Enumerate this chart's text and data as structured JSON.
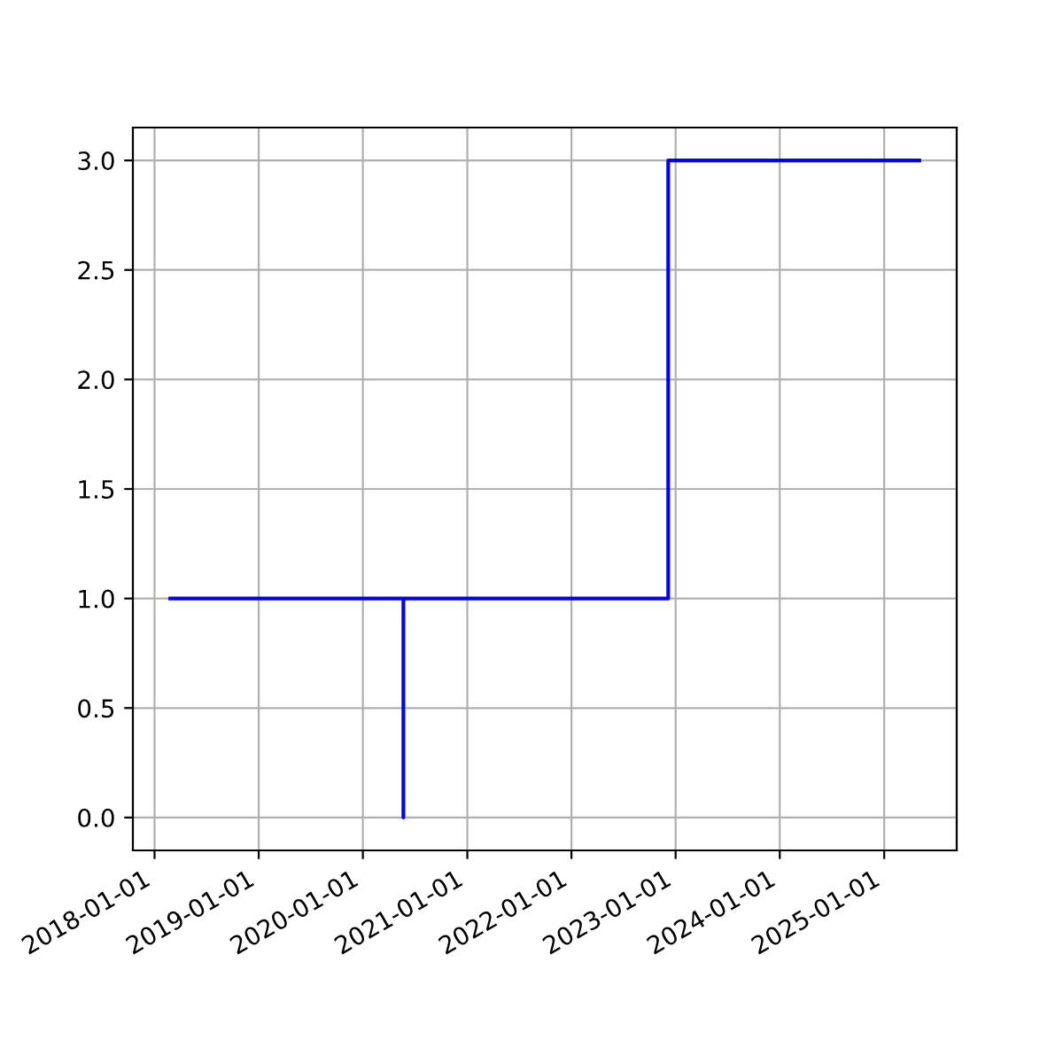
{
  "chart_data": {
    "type": "line",
    "x": [
      "2018-02-25",
      "2020-05-22",
      "2020-05-22",
      "2020-05-22",
      "2022-12-06",
      "2022-12-06",
      "2025-05-04"
    ],
    "series": [
      {
        "color": "#0000ff",
        "values": [
          1,
          1,
          0,
          1,
          1,
          3,
          3
        ]
      }
    ],
    "xlim": [
      "2017-10-17",
      "2025-09-12"
    ],
    "xticks": [
      {
        "value": "2018-01-01",
        "label": "2018-01-01"
      },
      {
        "value": "2019-01-01",
        "label": "2019-01-01"
      },
      {
        "value": "2020-01-01",
        "label": "2020-01-01"
      },
      {
        "value": "2021-01-01",
        "label": "2021-01-01"
      },
      {
        "value": "2022-01-01",
        "label": "2022-01-01"
      },
      {
        "value": "2023-01-01",
        "label": "2023-01-01"
      },
      {
        "value": "2024-01-01",
        "label": "2024-01-01"
      },
      {
        "value": "2025-01-01",
        "label": "2025-01-01"
      }
    ],
    "ylim": [
      -0.15,
      3.15
    ],
    "yticks": [
      {
        "value": 0,
        "label": "0.0"
      },
      {
        "value": 0.5,
        "label": "0.5"
      },
      {
        "value": 1,
        "label": "1.0"
      },
      {
        "value": 1.5,
        "label": "1.5"
      },
      {
        "value": 2,
        "label": "2.0"
      },
      {
        "value": 2.5,
        "label": "2.5"
      },
      {
        "value": 3,
        "label": "3.0"
      }
    ],
    "grid": true
  }
}
